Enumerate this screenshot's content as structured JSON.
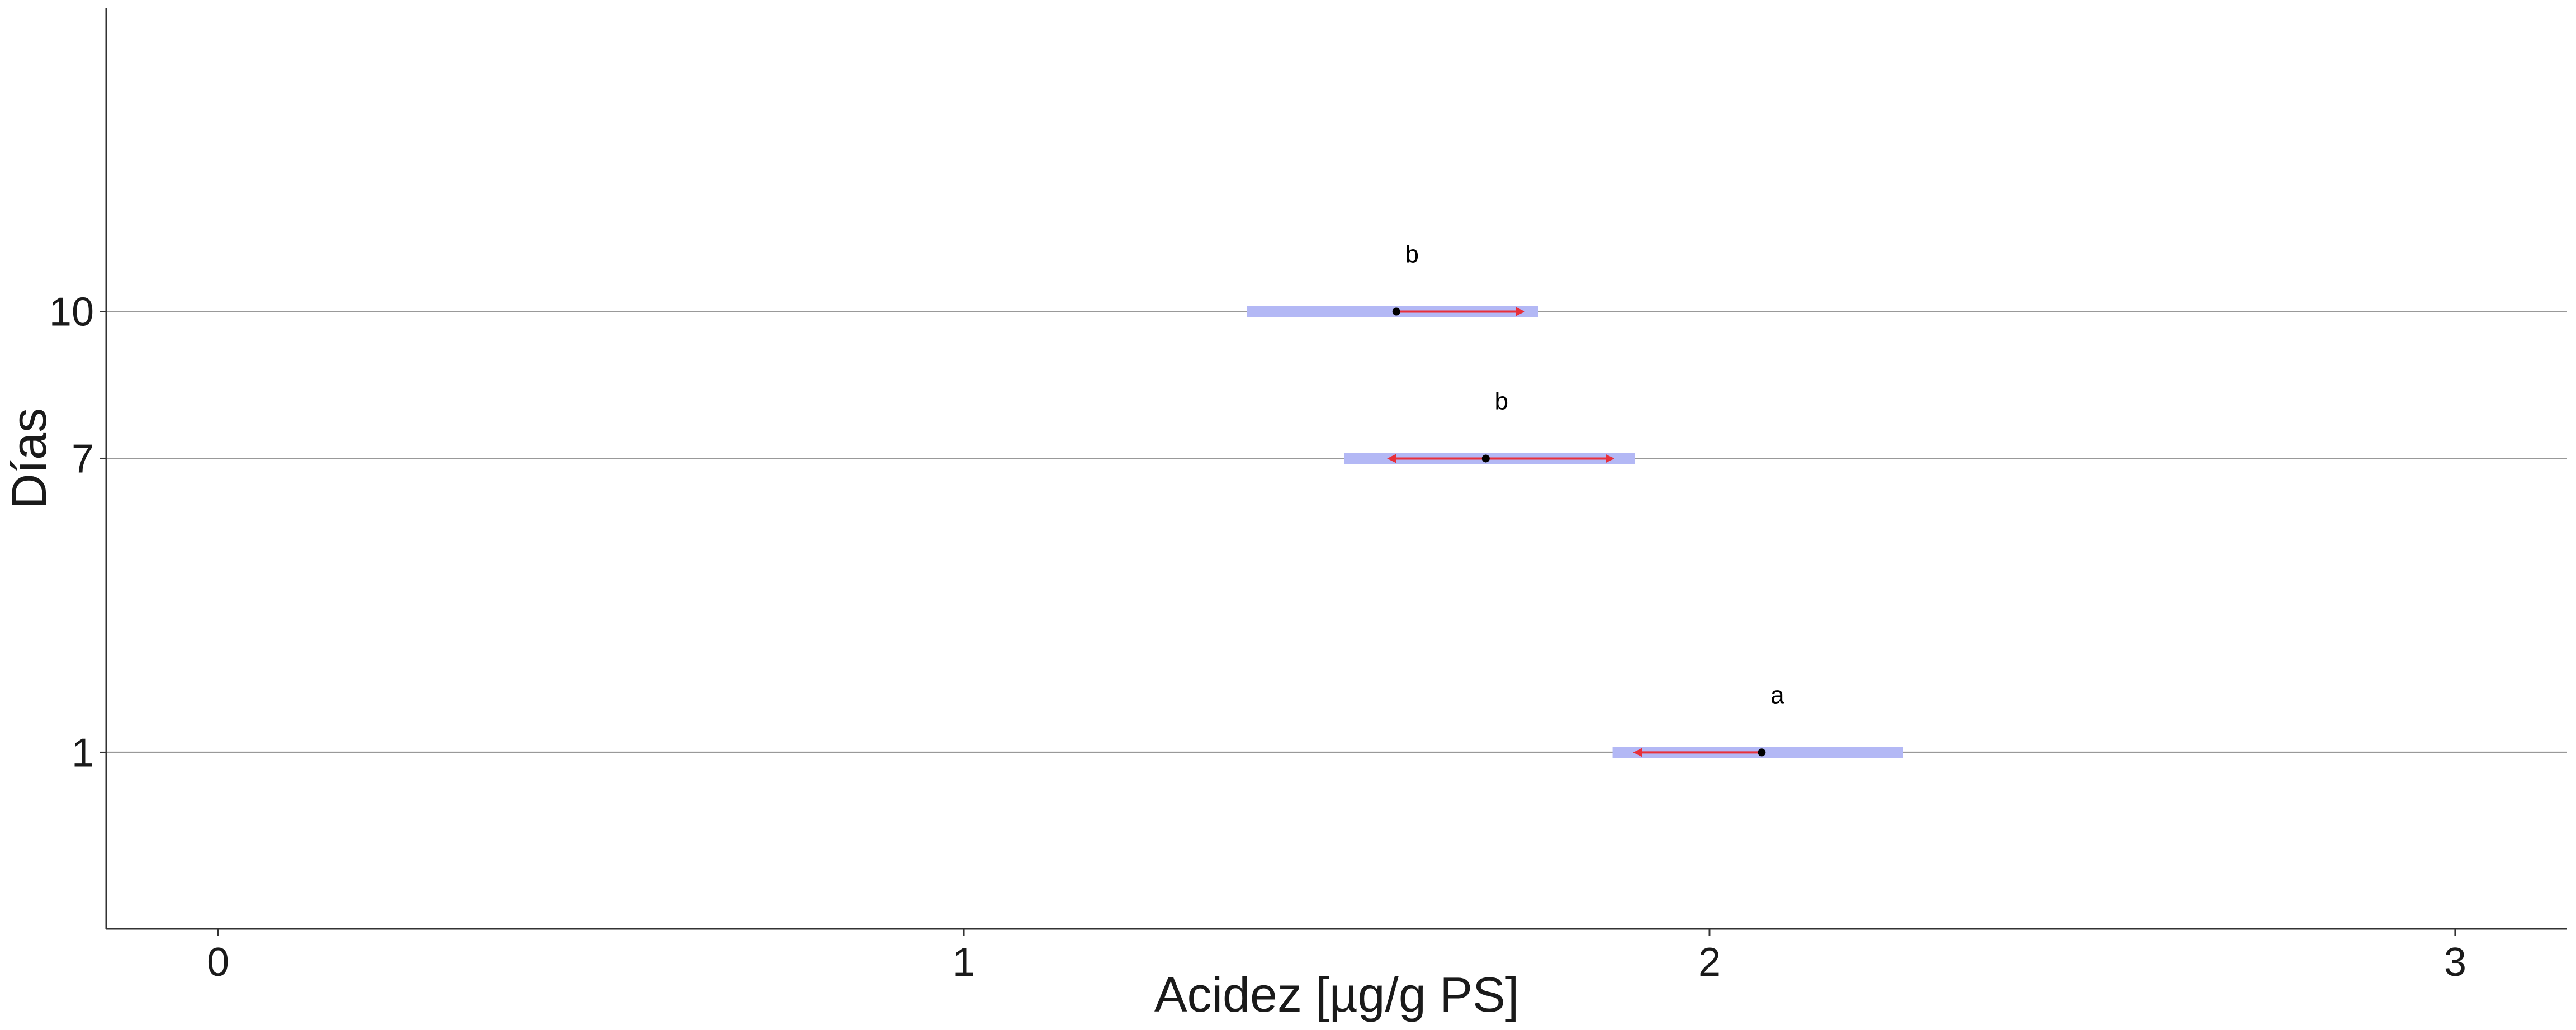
{
  "chart_data": {
    "type": "scatter",
    "title": "",
    "xlabel": "Acidez [µg/g PS]",
    "ylabel": "Días",
    "xlim": [
      -0.15,
      3.15
    ],
    "x_ticks": [
      "0",
      "1",
      "2",
      "3"
    ],
    "y_categories": [
      "1",
      "7",
      "10"
    ],
    "y_positions": [
      1,
      7,
      10
    ],
    "ylim": [
      -2.6,
      16.2
    ],
    "grid": "horizontal lines at each y category",
    "legend": "none",
    "series": [
      {
        "dias": "10",
        "mean": 1.58,
        "ci_low": 1.38,
        "ci_high": 1.77,
        "arrow_low": 1.58,
        "arrow_high": 1.75,
        "group": "b"
      },
      {
        "dias": "7",
        "mean": 1.7,
        "ci_low": 1.51,
        "ci_high": 1.9,
        "arrow_low": 1.57,
        "arrow_high": 1.87,
        "group": "b"
      },
      {
        "dias": "1",
        "mean": 2.07,
        "ci_low": 1.87,
        "ci_high": 2.26,
        "arrow_low": 1.9,
        "arrow_high": 2.07,
        "group": "a"
      }
    ],
    "colors": {
      "ci_bar": "#b3b8f5",
      "arrow": "#e8303a",
      "point": "#000000",
      "gridline": "#999999",
      "axis": "#333333"
    }
  }
}
